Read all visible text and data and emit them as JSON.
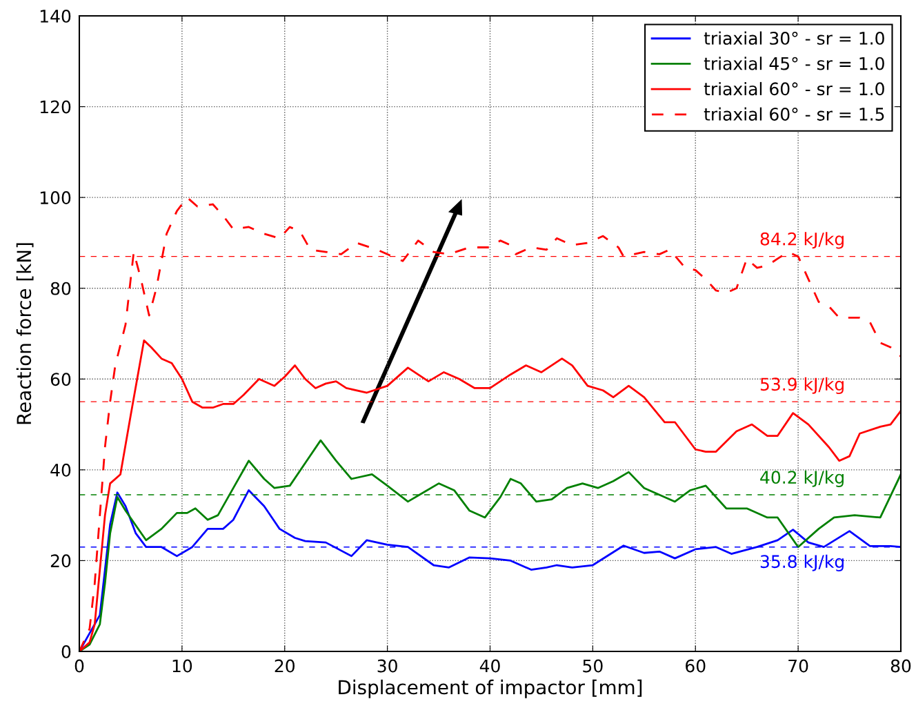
{
  "chart_data": {
    "type": "line",
    "xlabel": "Displacement of impactor [mm]",
    "ylabel": "Reaction force [kN]",
    "xlim": [
      0,
      80
    ],
    "ylim": [
      0,
      140
    ],
    "xticks": [
      0,
      10,
      20,
      30,
      40,
      50,
      60,
      70,
      80
    ],
    "yticks": [
      0,
      20,
      40,
      60,
      80,
      100,
      120,
      140
    ],
    "grid": true,
    "legend": "top right",
    "series": [
      {
        "name": "triaxial 30° - sr = 1.0",
        "color": "#0000ff",
        "line_style": "solid",
        "x": [
          0,
          2,
          2.5,
          3,
          3.7,
          4.5,
          5.5,
          6.5,
          8,
          9.5,
          11,
          12.5,
          14,
          15,
          16.5,
          18,
          19.5,
          21,
          22,
          24,
          26.5,
          28,
          30,
          32,
          34.5,
          36,
          38,
          40,
          42,
          44,
          45.5,
          46.5,
          48,
          50,
          53,
          55,
          56.5,
          58,
          60,
          62,
          63.5,
          66,
          68,
          69.5,
          71,
          72.5,
          75,
          77,
          79,
          80
        ],
        "values": [
          0,
          8,
          18,
          28,
          35,
          32,
          26,
          23,
          23,
          21,
          23,
          27,
          27,
          29,
          35.5,
          32,
          27,
          25,
          24.3,
          24,
          21,
          24.5,
          23.5,
          23,
          19,
          18.5,
          20.7,
          20.5,
          20,
          18,
          18.5,
          19,
          18.5,
          19,
          23.3,
          21.7,
          22,
          20.5,
          22.5,
          23,
          21.5,
          23,
          24.5,
          26.8,
          24,
          23,
          26.5,
          23.2,
          23.2,
          23
        ]
      },
      {
        "name": "triaxial 45° - sr = 1.0",
        "color": "#008000",
        "line_style": "solid",
        "x": [
          0,
          1,
          2,
          2.5,
          3,
          3.7,
          4.5,
          6.5,
          8,
          9.5,
          10.5,
          11.3,
          12.5,
          13.5,
          15,
          16.5,
          18,
          19,
          20.5,
          22,
          23.5,
          25,
          26.5,
          28.5,
          30,
          32,
          33.5,
          35,
          36.5,
          38,
          39.5,
          41,
          42,
          43,
          44.5,
          46,
          47.5,
          49,
          50.5,
          52,
          53.5,
          55,
          58,
          59.5,
          61,
          63,
          65,
          67,
          68,
          70,
          72,
          73.5,
          75.5,
          78,
          80
        ],
        "values": [
          0,
          1.5,
          6,
          15,
          26,
          34,
          31,
          24.5,
          27,
          30.5,
          30.5,
          31.5,
          29,
          30,
          36,
          42,
          38,
          36,
          36.5,
          41.5,
          46.5,
          42,
          38,
          39,
          36.5,
          33,
          35,
          37,
          35.5,
          31,
          29.5,
          34,
          38,
          37,
          33,
          33.5,
          36,
          37,
          36,
          37.5,
          39.5,
          36,
          33,
          35.5,
          36.5,
          31.5,
          31.5,
          29.5,
          29.5,
          23,
          27,
          29.5,
          30,
          29.5,
          39
        ]
      },
      {
        "name": "triaxial 60° - sr = 1.0",
        "color": "#ff0000",
        "line_style": "solid",
        "x": [
          0,
          1,
          1.5,
          2,
          2.5,
          3,
          4,
          5,
          6.3,
          7,
          8,
          9,
          10,
          11,
          12,
          13,
          14,
          15,
          16,
          17.5,
          19,
          20,
          21,
          22,
          23,
          24,
          25,
          26,
          28,
          30,
          32,
          34,
          35.5,
          37,
          38.5,
          40,
          42,
          43.5,
          45,
          47,
          48,
          49.5,
          51,
          52,
          53.5,
          55,
          57,
          58,
          60,
          61,
          62,
          64,
          65.5,
          67,
          68,
          69.5,
          71,
          73,
          74,
          75,
          76,
          78,
          79,
          80
        ],
        "values": [
          0,
          2,
          6,
          18,
          30,
          37,
          39,
          52,
          68.5,
          67,
          64.5,
          63.5,
          60,
          55,
          53.7,
          53.7,
          54.5,
          54.5,
          56.5,
          60,
          58.5,
          60.5,
          63,
          60,
          58,
          59,
          59.5,
          58,
          57,
          58.5,
          62.5,
          59.5,
          61.5,
          60,
          58,
          58,
          61,
          63,
          61.5,
          64.5,
          63,
          58.5,
          57.5,
          56,
          58.5,
          56,
          50.5,
          50.5,
          44.5,
          44,
          44,
          48.5,
          50,
          47.5,
          47.5,
          52.5,
          50,
          45,
          42,
          43,
          48,
          49.5,
          50,
          53
        ]
      },
      {
        "name": "triaxial 60° - sr = 1.5",
        "color": "#ff0000",
        "line_style": "dashed",
        "x": [
          0,
          1,
          1.5,
          2,
          2.5,
          3,
          3.5,
          4.5,
          5.3,
          6,
          6.8,
          7.5,
          8.5,
          9.5,
          10.5,
          11.5,
          13,
          14,
          15,
          16.5,
          18,
          19.5,
          20.5,
          21.5,
          22.5,
          24,
          25.5,
          27,
          29,
          30.5,
          31.5,
          33,
          34.5,
          36,
          38,
          40,
          41,
          42,
          42.5,
          44,
          45.5,
          46.5,
          48,
          49.5,
          51,
          52.5,
          53,
          55,
          56.5,
          57.5,
          59,
          60,
          61,
          62,
          63,
          64,
          65,
          66,
          67,
          68,
          69,
          70,
          71,
          72,
          73,
          74,
          75,
          76,
          77,
          78,
          79,
          80
        ],
        "values": [
          0,
          5,
          15,
          30,
          45,
          55,
          63,
          72,
          88,
          82,
          74,
          80,
          92,
          97,
          100,
          98,
          98.5,
          96,
          93,
          93.5,
          92,
          91,
          93.5,
          92.5,
          88.5,
          88,
          87.5,
          90,
          88.5,
          87,
          86,
          90.5,
          88,
          87.5,
          89,
          89,
          90.5,
          89.5,
          87.5,
          89,
          88.5,
          91,
          89.5,
          90,
          91.5,
          89,
          87,
          88,
          87.5,
          88.5,
          84.5,
          84,
          82,
          79.5,
          79,
          80,
          86.5,
          84.5,
          85,
          86.5,
          88,
          87,
          82,
          77,
          76,
          73.5,
          73.5,
          73.5,
          72.5,
          68,
          67,
          65
        ]
      }
    ],
    "ref_lines": [
      {
        "axis": "y",
        "value": 87,
        "color": "#ff0000",
        "line_style": "dashed",
        "label": "84.2 kJ/kg"
      },
      {
        "axis": "y",
        "value": 55,
        "color": "#ff0000",
        "line_style": "dashed",
        "label": "53.9 kJ/kg"
      },
      {
        "axis": "y",
        "value": 34.5,
        "color": "#008000",
        "line_style": "dashed",
        "label": "40.2 kJ/kg"
      },
      {
        "axis": "y",
        "value": 23,
        "color": "#0000ff",
        "line_style": "dashed",
        "label": "35.8 kJ/kg"
      }
    ]
  }
}
